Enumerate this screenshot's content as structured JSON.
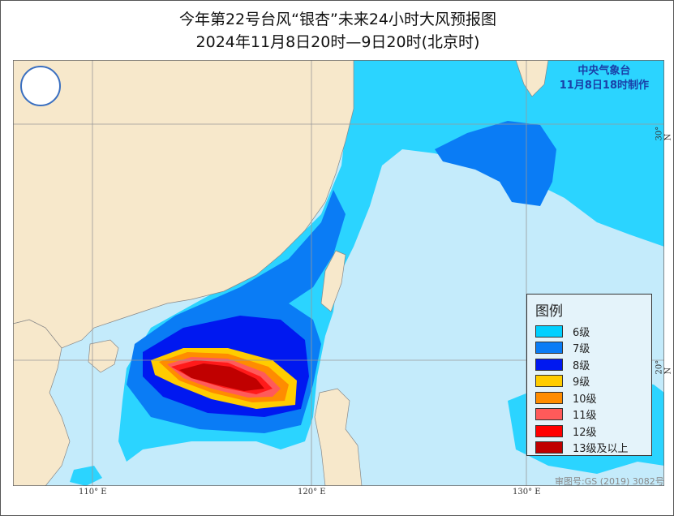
{
  "title": {
    "line1": "今年第22号台风“银杏”未来24小时大风预报图",
    "line2": "2024年11月8日20时—9日20时(北京时)"
  },
  "agency": {
    "name": "中央气象台",
    "issued": "11月8日18时制作"
  },
  "legend": {
    "title": "图例",
    "items": [
      {
        "label": "6级",
        "color": "#00d0ff"
      },
      {
        "label": "7级",
        "color": "#0a7cf5"
      },
      {
        "label": "8级",
        "color": "#0018f0"
      },
      {
        "label": "9级",
        "color": "#ffcc00"
      },
      {
        "label": "10级",
        "color": "#ff8c00"
      },
      {
        "label": "11级",
        "color": "#ff5a5a"
      },
      {
        "label": "12级",
        "color": "#ff0000"
      },
      {
        "label": "13级及以上",
        "color": "#c00000"
      }
    ]
  },
  "axes": {
    "lon": [
      "110° E",
      "120° E",
      "130° E"
    ],
    "lat": [
      "30° N",
      "20° N"
    ]
  },
  "map_approval": "审图号:GS (2019) 3082号",
  "colors": {
    "land": "#f7e8cb",
    "sea": "#c4ebfb"
  }
}
